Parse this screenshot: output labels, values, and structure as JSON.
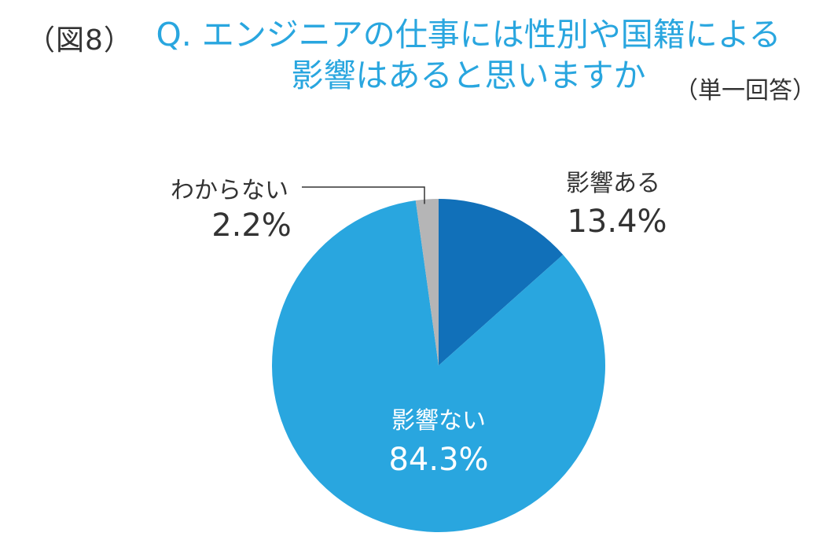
{
  "header": {
    "figure_label": "（図8）",
    "title": "Q. エンジニアの仕事には性別や国籍による\n影響はあると思いますか",
    "note": "（単一回答）"
  },
  "colors": {
    "title": "#29A6DF",
    "text_dark": "#333333",
    "text_white": "#ffffff",
    "slice_affect": "#1170B9",
    "slice_noaffect": "#29A6DF",
    "slice_unknown": "#B5B5B6"
  },
  "chart_data": {
    "type": "pie",
    "start": "12 o'clock",
    "direction": "clockwise",
    "slices": [
      {
        "label": "影響ある",
        "value": 13.4,
        "display": "13.4%",
        "color": "#1170B9"
      },
      {
        "label": "影響ない",
        "value": 84.3,
        "display": "84.3%",
        "color": "#29A6DF"
      },
      {
        "label": "わからない",
        "value": 2.2,
        "display": "2.2%",
        "color": "#B5B5B6"
      }
    ],
    "unit": "%"
  }
}
